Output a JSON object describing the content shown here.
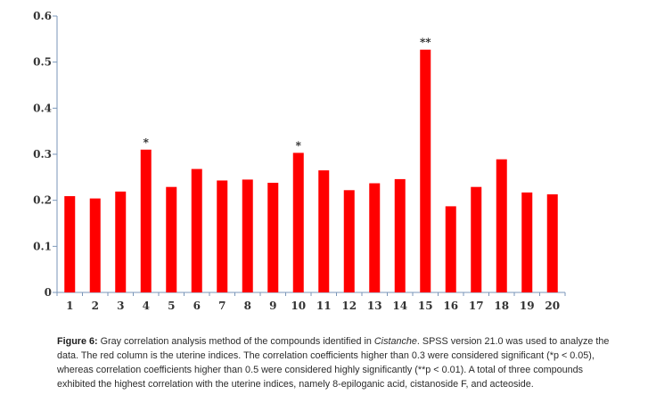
{
  "chart_data": {
    "type": "bar",
    "categories": [
      "1",
      "2",
      "3",
      "4",
      "5",
      "6",
      "7",
      "8",
      "9",
      "10",
      "11",
      "12",
      "13",
      "14",
      "15",
      "16",
      "17",
      "18",
      "19",
      "20"
    ],
    "values": [
      0.209,
      0.204,
      0.219,
      0.31,
      0.229,
      0.268,
      0.243,
      0.245,
      0.238,
      0.303,
      0.265,
      0.222,
      0.237,
      0.246,
      0.527,
      0.187,
      0.229,
      0.289,
      0.217,
      0.213
    ],
    "annotations": [
      "",
      "",
      "",
      "*",
      "",
      "",
      "",
      "",
      "",
      "*",
      "",
      "",
      "",
      "",
      "**",
      "",
      "",
      "",
      "",
      ""
    ],
    "ylim": [
      0,
      0.6
    ],
    "yticks": [
      "0",
      "0.1",
      "0.2",
      "0.3",
      "0.4",
      "0.5",
      "0.6"
    ],
    "grid": false,
    "bar_color": "#ff0000",
    "axis_color": "#7a96b8"
  },
  "caption": {
    "label": "Figure 6:",
    "part1": " Gray correlation analysis method of the compounds identified in ",
    "species": "Cistanche",
    "part2": ". SPSS version 21.0 was used to analyze the data. The red column is the uterine indices. The correlation coefficients higher than 0.3 were considered significant (*p < 0.05), whereas correlation coefficients higher than 0.5 were considered highly significantly (**p < 0.01). A total of three compounds exhibited the highest correlation with the uterine indices, namely 8-epiloganic acid, cistanoside F, and acteoside."
  }
}
